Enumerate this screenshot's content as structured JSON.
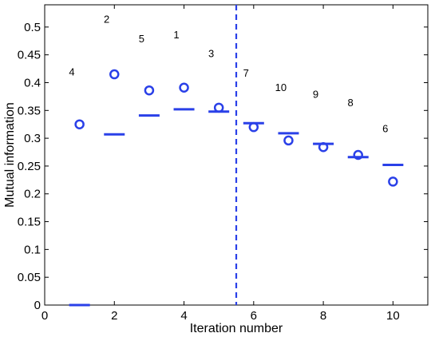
{
  "chart_data": {
    "type": "scatter",
    "xlabel": "Iteration number",
    "ylabel": "Mutual information",
    "xlim": [
      0,
      11
    ],
    "ylim": [
      0,
      0.54
    ],
    "xticks": [
      0,
      2,
      4,
      6,
      8,
      10
    ],
    "yticks": [
      0,
      0.05,
      0.1,
      0.15,
      0.2,
      0.25,
      0.3,
      0.35,
      0.4,
      0.45,
      0.5
    ],
    "ytick_labels": [
      "0",
      "0.05",
      "0.1",
      "0.15",
      "0.2",
      "0.25",
      "0.3",
      "0.35",
      "0.4",
      "0.45",
      "0.5"
    ],
    "grid": false,
    "color": "#2a40e8",
    "divider_x": 5.5,
    "series": [
      {
        "marker": "circle",
        "x": [
          1,
          2,
          3,
          4,
          5,
          6,
          7,
          8,
          9,
          10
        ],
        "y": [
          0.325,
          0.415,
          0.386,
          0.391,
          0.355,
          0.32,
          0.296,
          0.284,
          0.27,
          0.222
        ]
      },
      {
        "marker": "hbar",
        "x": [
          1,
          2,
          3,
          4,
          5,
          6,
          7,
          8,
          9,
          10
        ],
        "y": [
          0.0,
          0.307,
          0.341,
          0.352,
          0.348,
          0.327,
          0.309,
          0.29,
          0.266,
          0.252
        ]
      }
    ],
    "annotations": [
      {
        "text": "4",
        "x": 0.78,
        "y": 0.42
      },
      {
        "text": "2",
        "x": 1.78,
        "y": 0.515
      },
      {
        "text": "5",
        "x": 2.78,
        "y": 0.48
      },
      {
        "text": "1",
        "x": 3.78,
        "y": 0.487
      },
      {
        "text": "3",
        "x": 4.78,
        "y": 0.453
      },
      {
        "text": "7",
        "x": 5.78,
        "y": 0.418
      },
      {
        "text": "10",
        "x": 6.78,
        "y": 0.392
      },
      {
        "text": "9",
        "x": 7.78,
        "y": 0.38
      },
      {
        "text": "8",
        "x": 8.78,
        "y": 0.365
      },
      {
        "text": "6",
        "x": 9.78,
        "y": 0.318
      }
    ]
  }
}
